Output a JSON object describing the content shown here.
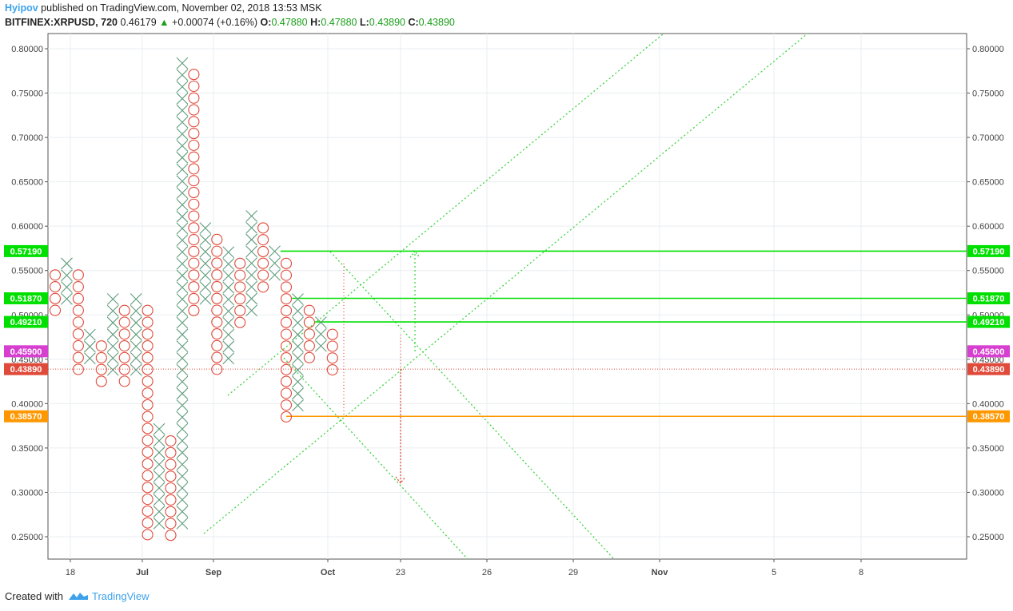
{
  "header": {
    "author": "Hyipov",
    "published_text": "published on TradingView.com, November 02, 2018 13:53 MSK",
    "symbol": "BITFINEX:XRPUSD, 720",
    "last": "0.46179",
    "change_arrow": "▲",
    "change": "+0.00074 (+0.16%)",
    "o_label": "O:",
    "o_value": "0.47880",
    "h_label": "H:",
    "h_value": "0.47880",
    "l_label": "L:",
    "l_value": "0.43890",
    "c_label": "C:",
    "c_value": "0.43890"
  },
  "footer": {
    "created_with": "Created with",
    "brand": "TradingView"
  },
  "colors": {
    "x_mark": "#5f9c7c",
    "o_mark": "#e04a3a",
    "grid": "#e9eef0",
    "axis": "#555555",
    "green_level": "#00e000",
    "orange_level": "#ff9800",
    "magenta_badge": "#d63fd0",
    "red_badge": "#e04a3a",
    "trend": "#3bd43b"
  },
  "chart_data": {
    "type": "point-and-figure",
    "y_ticks": [
      "0.80000",
      "0.75000",
      "0.70000",
      "0.65000",
      "0.60000",
      "0.55000",
      "0.50000",
      "0.45000",
      "0.40000",
      "0.35000",
      "0.30000",
      "0.25000"
    ],
    "x_ticks": [
      "18",
      "Jul",
      "Sep",
      "Oct",
      "23",
      "26",
      "29",
      "Nov",
      "5",
      "8"
    ],
    "ylim": [
      0.23,
      0.82
    ],
    "box_size": 0.0133,
    "columns": [
      {
        "type": "O",
        "high": 0.545,
        "low": 0.505
      },
      {
        "type": "X",
        "low": 0.518,
        "high": 0.558
      },
      {
        "type": "O",
        "high": 0.545,
        "low": 0.438
      },
      {
        "type": "X",
        "low": 0.451,
        "high": 0.478
      },
      {
        "type": "O",
        "high": 0.465,
        "low": 0.425
      },
      {
        "type": "X",
        "low": 0.438,
        "high": 0.518
      },
      {
        "type": "O",
        "high": 0.505,
        "low": 0.425
      },
      {
        "type": "X",
        "low": 0.438,
        "high": 0.518
      },
      {
        "type": "O",
        "high": 0.505,
        "low": 0.252
      },
      {
        "type": "X",
        "low": 0.265,
        "high": 0.372
      },
      {
        "type": "O",
        "high": 0.358,
        "low": 0.252
      },
      {
        "type": "X",
        "low": 0.265,
        "high": 0.784
      },
      {
        "type": "O",
        "high": 0.771,
        "low": 0.505
      },
      {
        "type": "X",
        "low": 0.518,
        "high": 0.598
      },
      {
        "type": "O",
        "high": 0.585,
        "low": 0.438
      },
      {
        "type": "X",
        "low": 0.451,
        "high": 0.571
      },
      {
        "type": "O",
        "high": 0.558,
        "low": 0.491
      },
      {
        "type": "X",
        "low": 0.505,
        "high": 0.611
      },
      {
        "type": "O",
        "high": 0.598,
        "low": 0.531
      },
      {
        "type": "X",
        "low": 0.545,
        "high": 0.571
      },
      {
        "type": "O",
        "high": 0.558,
        "low": 0.385
      },
      {
        "type": "X",
        "low": 0.398,
        "high": 0.518
      },
      {
        "type": "O",
        "high": 0.505,
        "low": 0.451
      },
      {
        "type": "X",
        "low": 0.465,
        "high": 0.491
      },
      {
        "type": "O",
        "high": 0.478,
        "low": 0.438
      }
    ],
    "levels": [
      {
        "value": 0.5719,
        "label": "0.57190",
        "color": "#00e000",
        "line": "solid",
        "start_col": 19.5
      },
      {
        "value": 0.5187,
        "label": "0.51870",
        "color": "#00e000",
        "line": "solid",
        "start_col": 20.5
      },
      {
        "value": 0.4921,
        "label": "0.49210",
        "color": "#00e000",
        "line": "solid",
        "start_col": 22.5
      },
      {
        "value": 0.459,
        "label": "0.45900",
        "color": "#d63fd0",
        "line": "none"
      },
      {
        "value": 0.4389,
        "label": "0.43890",
        "color": "#e04a3a",
        "line": "dotted"
      },
      {
        "value": 0.3857,
        "label": "0.38570",
        "color": "#ff9800",
        "line": "solid",
        "start_col": 20
      }
    ],
    "grid": true
  }
}
